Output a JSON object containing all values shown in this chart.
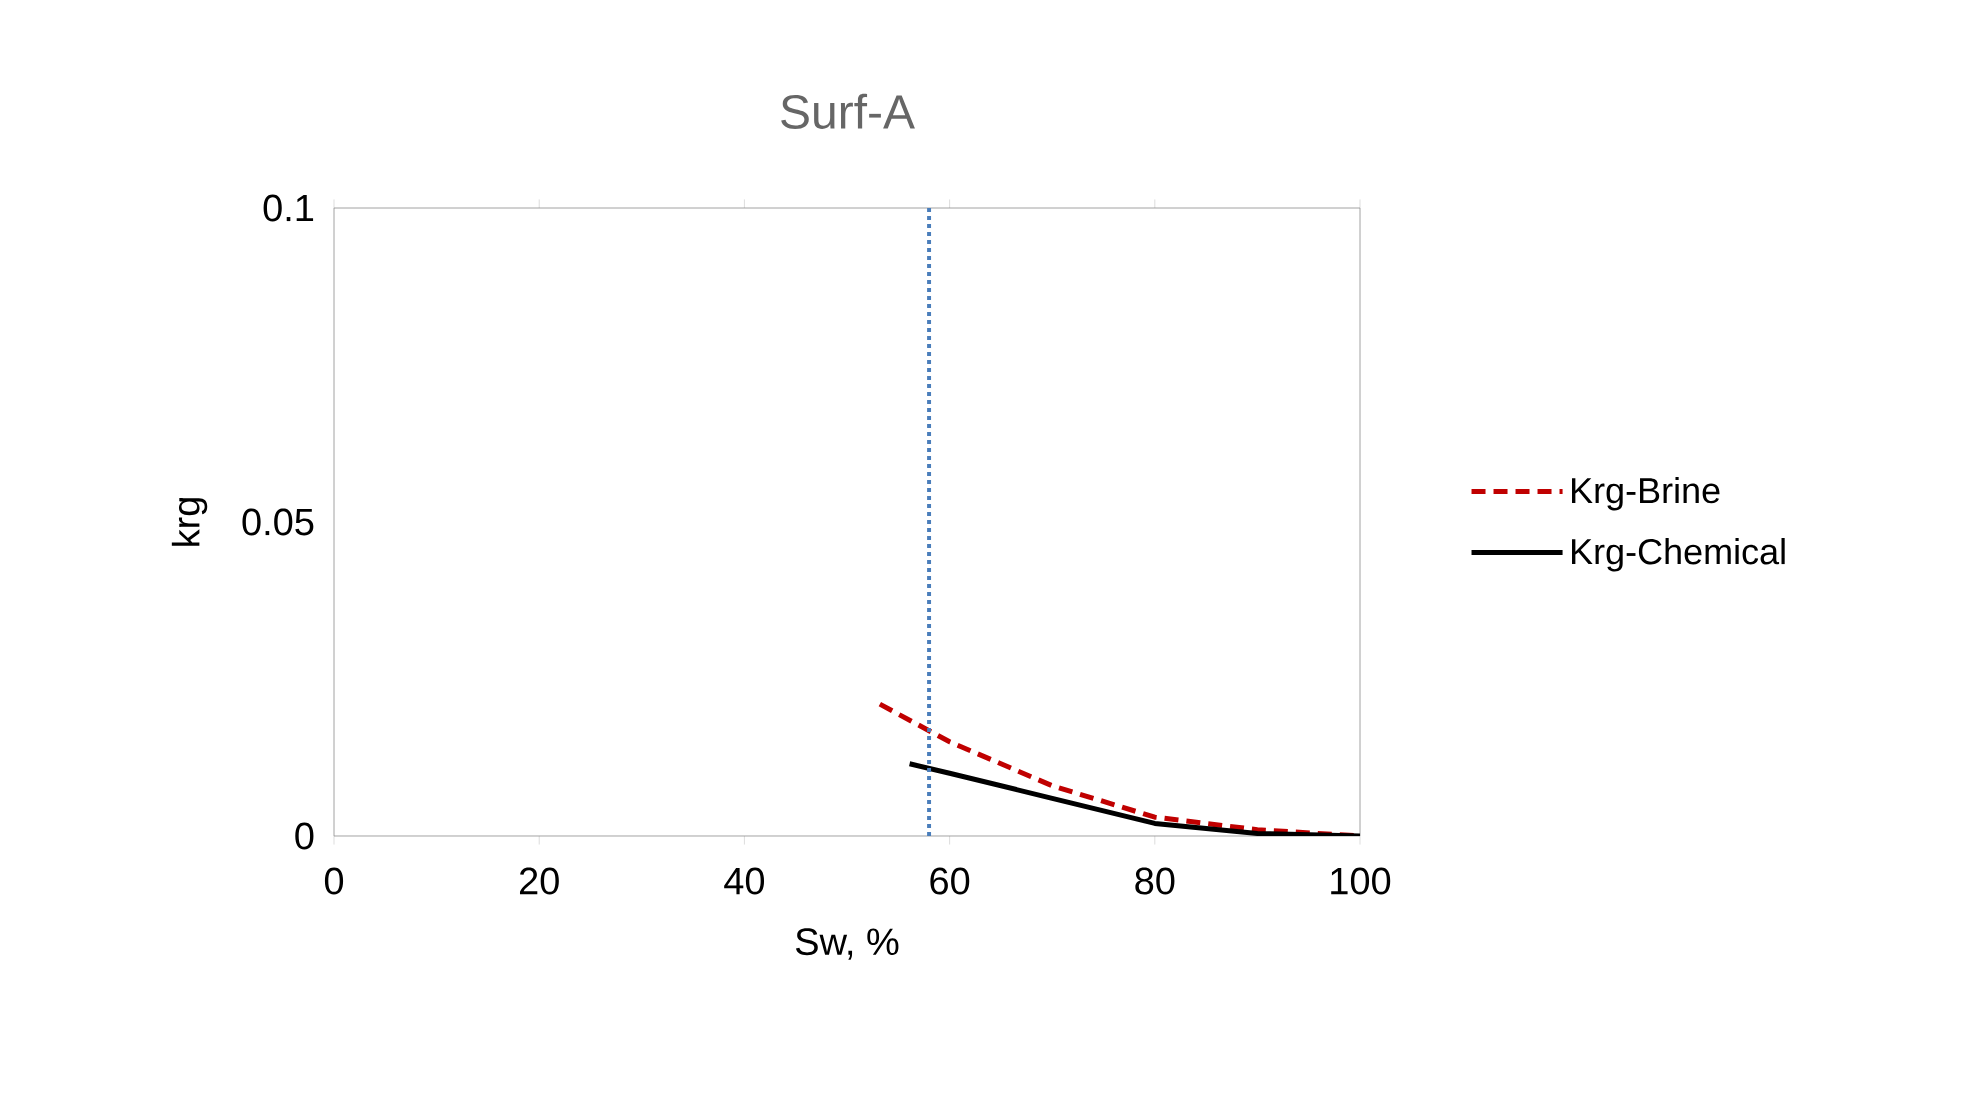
{
  "chart_data": {
    "type": "line",
    "title": "Surf-A",
    "xlabel": "Sw, %",
    "ylabel": "krg",
    "xlim": [
      0,
      100
    ],
    "ylim": [
      0,
      0.1
    ],
    "xticks": [
      0,
      20,
      40,
      60,
      80,
      100
    ],
    "yticks": [
      0,
      0.05,
      0.1
    ],
    "grid": false,
    "legend": "right",
    "marker": "none",
    "series": [
      {
        "name": "Krg-Brine",
        "color": "#c00000",
        "line_style": "dashed",
        "x": [
          53.2,
          60,
          70,
          80,
          90,
          100
        ],
        "values": [
          0.021,
          0.015,
          0.008,
          0.003,
          0.001,
          0
        ]
      },
      {
        "name": "Krg-Chemical",
        "color": "#000000",
        "line_style": "solid",
        "x": [
          56.1,
          60,
          70,
          80,
          90,
          100
        ],
        "values": [
          0.0115,
          0.01,
          0.006,
          0.002,
          0.0004,
          0
        ]
      }
    ],
    "ref_lines": [
      {
        "axis": "x",
        "value": 58,
        "color": "#4a7ebb",
        "line_style": "dotted"
      }
    ]
  }
}
